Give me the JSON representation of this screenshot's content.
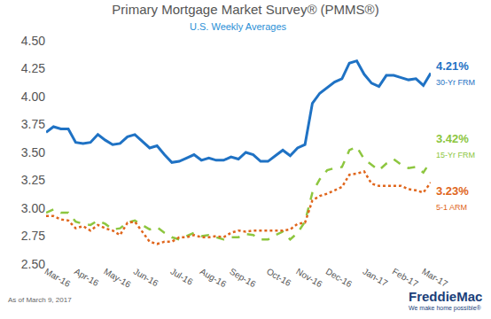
{
  "chart_data": {
    "type": "line",
    "title": "Primary Mortgage Market Survey® (PMMS®)",
    "subtitle": "U.S. Weekly Averages",
    "footnote": "As of March 9, 2017",
    "logo": "FreddieMac",
    "tagline": "We make home possible®",
    "grid": false,
    "categories": [
      "Mar-16",
      null,
      null,
      null,
      "Apr-16",
      null,
      null,
      null,
      "May-16",
      null,
      null,
      null,
      "Jun-16",
      null,
      null,
      null,
      null,
      "Jul-16",
      null,
      null,
      null,
      "Aug-16",
      null,
      null,
      null,
      "Sep-16",
      null,
      null,
      null,
      null,
      "Oct-16",
      null,
      null,
      null,
      "Nov-16",
      null,
      null,
      null,
      "Dec-16",
      null,
      null,
      null,
      null,
      "Jan-17",
      null,
      null,
      null,
      "Feb-17",
      null,
      null,
      null,
      "Mar-17",
      null
    ],
    "ylim": [
      2.5,
      4.5
    ],
    "yticks": [
      {
        "value": 2.5,
        "label": "2.50"
      },
      2.75,
      {
        "value": 3,
        "label": "3.00"
      },
      3.25,
      {
        "value": 3.5,
        "label": "3.50"
      },
      3.75,
      {
        "value": 4,
        "label": "4.00"
      },
      4.25,
      {
        "value": 4.5,
        "label": "4.50"
      }
    ],
    "series": [
      {
        "name": "30-Yr FRM",
        "color": "#1f72c4",
        "line_style": "solid",
        "values": [
          3.68,
          3.73,
          3.71,
          3.71,
          3.59,
          3.58,
          3.59,
          3.66,
          3.61,
          3.57,
          3.58,
          3.64,
          3.66,
          3.6,
          3.54,
          3.56,
          3.48,
          3.41,
          3.42,
          3.45,
          3.48,
          3.43,
          3.45,
          3.43,
          3.43,
          3.46,
          3.44,
          3.5,
          3.48,
          3.42,
          3.42,
          3.47,
          3.52,
          3.47,
          3.54,
          3.57,
          3.94,
          4.03,
          4.08,
          4.13,
          4.16,
          4.3,
          4.32,
          4.2,
          4.12,
          4.09,
          4.19,
          4.19,
          4.17,
          4.15,
          4.16,
          4.1,
          4.21
        ],
        "value_labels": [
          null,
          null,
          null,
          null,
          null,
          null,
          null,
          null,
          null,
          null,
          null,
          null,
          null,
          null,
          null,
          null,
          null,
          null,
          null,
          null,
          null,
          null,
          null,
          null,
          null,
          null,
          null,
          null,
          null,
          null,
          null,
          null,
          null,
          null,
          null,
          null,
          null,
          null,
          null,
          null,
          null,
          null,
          null,
          null,
          null,
          null,
          null,
          null,
          null,
          null,
          null,
          null,
          "4.21%"
        ]
      },
      {
        "name": "15-Yr FRM",
        "color": "#8dc63f",
        "line_style": "dash",
        "values": [
          2.96,
          2.99,
          2.96,
          2.96,
          2.88,
          2.86,
          2.85,
          2.89,
          2.86,
          2.81,
          2.82,
          2.87,
          2.89,
          2.85,
          2.81,
          2.83,
          2.78,
          2.74,
          2.72,
          2.75,
          2.78,
          2.75,
          2.76,
          2.74,
          2.72,
          2.74,
          2.74,
          2.77,
          2.76,
          2.72,
          2.72,
          2.76,
          2.79,
          2.72,
          2.78,
          2.88,
          3.14,
          3.26,
          3.34,
          3.36,
          3.37,
          3.52,
          3.55,
          3.44,
          3.39,
          3.34,
          3.4,
          3.44,
          3.39,
          3.36,
          3.37,
          3.32,
          3.42
        ],
        "value_labels": [
          null,
          null,
          null,
          null,
          null,
          null,
          null,
          null,
          null,
          null,
          null,
          null,
          null,
          null,
          null,
          null,
          null,
          null,
          null,
          null,
          null,
          null,
          null,
          null,
          null,
          null,
          null,
          null,
          null,
          null,
          null,
          null,
          null,
          null,
          null,
          null,
          null,
          null,
          null,
          null,
          null,
          null,
          null,
          null,
          null,
          null,
          null,
          null,
          null,
          null,
          null,
          null,
          "3.42%"
        ]
      },
      {
        "name": "5-1 ARM",
        "color": "#e0661c",
        "line_style": "dot",
        "values": [
          2.93,
          2.93,
          2.9,
          2.89,
          2.82,
          2.84,
          2.8,
          2.85,
          2.82,
          2.8,
          2.76,
          2.87,
          2.88,
          2.79,
          2.7,
          2.68,
          2.7,
          2.7,
          2.74,
          2.74,
          2.76,
          2.74,
          2.74,
          2.75,
          2.74,
          2.78,
          2.8,
          2.79,
          2.8,
          2.8,
          2.8,
          2.8,
          2.8,
          2.81,
          2.86,
          2.87,
          3.07,
          3.11,
          3.13,
          3.16,
          3.19,
          3.3,
          3.31,
          3.33,
          3.22,
          3.2,
          3.2,
          3.2,
          3.2,
          3.17,
          3.16,
          3.14,
          3.23
        ],
        "value_labels": [
          null,
          null,
          null,
          null,
          null,
          null,
          null,
          null,
          null,
          null,
          null,
          null,
          null,
          null,
          null,
          null,
          null,
          null,
          null,
          null,
          null,
          null,
          null,
          null,
          null,
          null,
          null,
          null,
          null,
          null,
          null,
          null,
          null,
          null,
          null,
          null,
          null,
          null,
          null,
          null,
          null,
          null,
          null,
          null,
          null,
          null,
          null,
          null,
          null,
          null,
          null,
          null,
          "3.23%"
        ]
      }
    ]
  }
}
